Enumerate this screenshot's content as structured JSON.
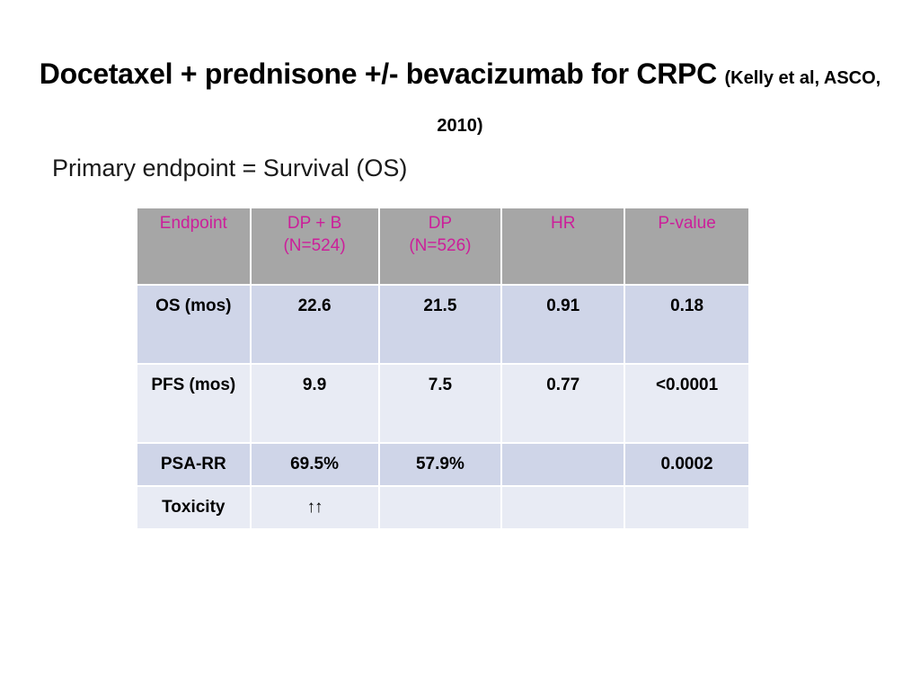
{
  "slide": {
    "title": "Docetaxel + prednisone +/- bevacizumab for CRPC",
    "citation": "(Kelly et al, ASCO, 2010)",
    "subtitle": "Primary endpoint = Survival (OS)"
  },
  "table": {
    "headers": [
      "Endpoint",
      "DP + B\n(N=524)",
      "DP\n(N=526)",
      "HR",
      "P-value"
    ],
    "rows": [
      [
        "OS (mos)",
        "22.6",
        "21.5",
        "0.91",
        "0.18"
      ],
      [
        "PFS (mos)",
        "9.9",
        "7.5",
        "0.77",
        "<0.0001"
      ],
      [
        "PSA-RR",
        "69.5%",
        "57.9%",
        "",
        "0.0002"
      ],
      [
        "Toxicity",
        "↑↑",
        "",
        "",
        ""
      ]
    ]
  },
  "colors": {
    "header_bg": "#a6a6a6",
    "header_text": "#cc1f9a",
    "row_dark": "#cfd5e8",
    "row_light": "#e8ebf4"
  }
}
